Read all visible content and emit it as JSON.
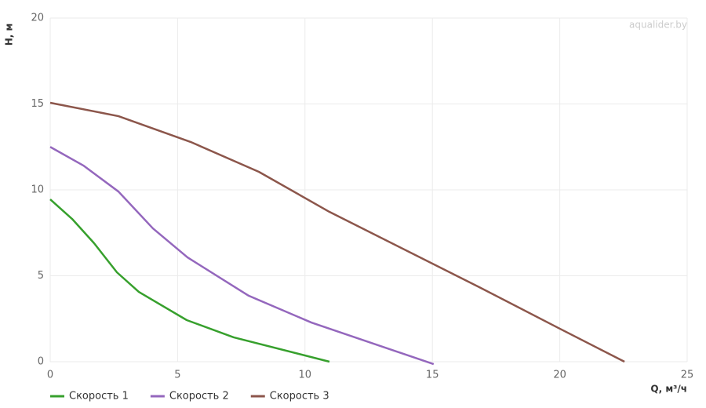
{
  "chart_data": {
    "type": "line",
    "watermark": "aqualider.by",
    "x_label": "Q, м³/ч",
    "y_label": "H, м",
    "xlim": [
      0,
      25
    ],
    "xticks": [
      0,
      5,
      10,
      15,
      20,
      25
    ],
    "ylim": [
      0,
      20
    ],
    "yticks": [
      0,
      5,
      10,
      15,
      20
    ],
    "grid": true,
    "legend": "bottom-left",
    "series": [
      {
        "name": "Скорость 1",
        "color": "#37a02d",
        "x": [
          0,
          0.86,
          1.72,
          2.62,
          3.48,
          5.36,
          7.2,
          10.96
        ],
        "values": [
          9.45,
          8.31,
          6.9,
          5.2,
          4.06,
          2.42,
          1.42,
          0
        ]
      },
      {
        "name": "Скорость 2",
        "color": "#9467bd",
        "x": [
          0,
          1.32,
          2.68,
          4.03,
          5.39,
          7.79,
          10.25,
          15.05
        ],
        "values": [
          12.5,
          11.4,
          9.9,
          7.76,
          6.07,
          3.84,
          2.28,
          -0.14
        ]
      },
      {
        "name": "Скорость 3",
        "color": "#8c564b",
        "x": [
          0,
          2.68,
          5.51,
          8.19,
          10.96,
          16.84,
          19.95,
          22.54
        ],
        "values": [
          15.07,
          14.29,
          12.79,
          11.05,
          8.72,
          4.34,
          1.96,
          0
        ]
      }
    ]
  }
}
